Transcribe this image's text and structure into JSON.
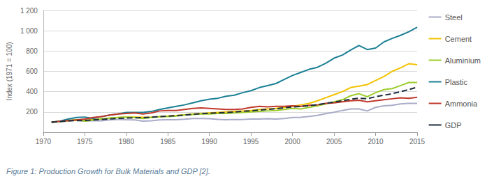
{
  "chart_data": {
    "type": "line",
    "y_label": "Index (1971 = 100)",
    "caption": "Figure 1: Production Growth for Bulk Materials and GDP [2].",
    "x": [
      1971,
      1972,
      1973,
      1974,
      1975,
      1976,
      1977,
      1978,
      1979,
      1980,
      1981,
      1982,
      1983,
      1984,
      1985,
      1986,
      1987,
      1988,
      1989,
      1990,
      1991,
      1992,
      1993,
      1994,
      1995,
      1996,
      1997,
      1998,
      1999,
      2000,
      2001,
      2002,
      2003,
      2004,
      2005,
      2006,
      2007,
      2008,
      2009,
      2010,
      2011,
      2012,
      2013,
      2014,
      2015
    ],
    "xlim": [
      1970,
      2015
    ],
    "xticks": [
      1970,
      1975,
      1980,
      1985,
      1990,
      1995,
      2000,
      2005,
      2010,
      2015
    ],
    "ylim": [
      0,
      1200
    ],
    "yticks": [
      200,
      400,
      600,
      800,
      {
        "value": 1000,
        "label": "1 000"
      },
      {
        "value": 1200,
        "label": "1 200"
      }
    ],
    "grid": true,
    "legend": "right",
    "marker": "none",
    "series": [
      {
        "name": "Steel",
        "color": "#a9abc9",
        "line_style": "solid",
        "values": [
          100,
          108,
          118,
          120,
          110,
          115,
          113,
          122,
          127,
          123,
          122,
          110,
          113,
          122,
          124,
          124,
          128,
          135,
          136,
          133,
          127,
          124,
          126,
          126,
          130,
          130,
          134,
          130,
          136,
          146,
          147,
          156,
          167,
          183,
          197,
          215,
          230,
          230,
          210,
          245,
          260,
          265,
          280,
          285,
          285
        ]
      },
      {
        "name": "Cement",
        "color": "#f2c200",
        "line_style": "solid",
        "values": [
          100,
          108,
          115,
          118,
          118,
          125,
          132,
          138,
          145,
          150,
          150,
          148,
          150,
          155,
          160,
          165,
          172,
          180,
          185,
          190,
          195,
          200,
          205,
          210,
          215,
          225,
          230,
          235,
          245,
          255,
          270,
          285,
          310,
          340,
          370,
          400,
          440,
          455,
          470,
          510,
          550,
          600,
          635,
          675,
          665
        ]
      },
      {
        "name": "Aluminium",
        "color": "#9ccc2c",
        "line_style": "solid",
        "values": [
          100,
          105,
          115,
          125,
          110,
          120,
          130,
          140,
          145,
          150,
          145,
          135,
          145,
          155,
          155,
          160,
          170,
          175,
          180,
          180,
          185,
          185,
          190,
          195,
          200,
          205,
          210,
          215,
          225,
          235,
          230,
          245,
          260,
          280,
          300,
          320,
          360,
          380,
          350,
          390,
          420,
          430,
          460,
          490,
          490
        ]
      },
      {
        "name": "Plastic",
        "color": "#1b7f94",
        "line_style": "solid",
        "values": [
          100,
          110,
          130,
          145,
          150,
          135,
          155,
          170,
          180,
          195,
          195,
          195,
          205,
          225,
          240,
          255,
          270,
          290,
          310,
          325,
          335,
          355,
          365,
          390,
          410,
          440,
          460,
          480,
          520,
          560,
          590,
          620,
          640,
          680,
          730,
          760,
          810,
          855,
          815,
          830,
          890,
          925,
          955,
          990,
          1035
        ]
      },
      {
        "name": "Ammonia",
        "color": "#c0392b",
        "line_style": "solid",
        "values": [
          100,
          108,
          115,
          122,
          130,
          145,
          155,
          170,
          180,
          185,
          190,
          180,
          190,
          210,
          215,
          215,
          225,
          235,
          240,
          235,
          230,
          225,
          225,
          230,
          245,
          255,
          250,
          255,
          255,
          260,
          255,
          265,
          270,
          285,
          290,
          300,
          310,
          315,
          300,
          310,
          320,
          330,
          340,
          335,
          345
        ]
      },
      {
        "name": "GDP",
        "color": "#1c2b3a",
        "line_style": "dashed",
        "values": [
          100,
          105,
          112,
          115,
          116,
          122,
          127,
          132,
          137,
          140,
          143,
          144,
          148,
          154,
          159,
          164,
          170,
          177,
          183,
          188,
          191,
          195,
          200,
          206,
          212,
          219,
          225,
          232,
          241,
          250,
          255,
          262,
          272,
          285,
          297,
          310,
          325,
          335,
          330,
          350,
          365,
          380,
          400,
          420,
          445
        ]
      }
    ]
  }
}
